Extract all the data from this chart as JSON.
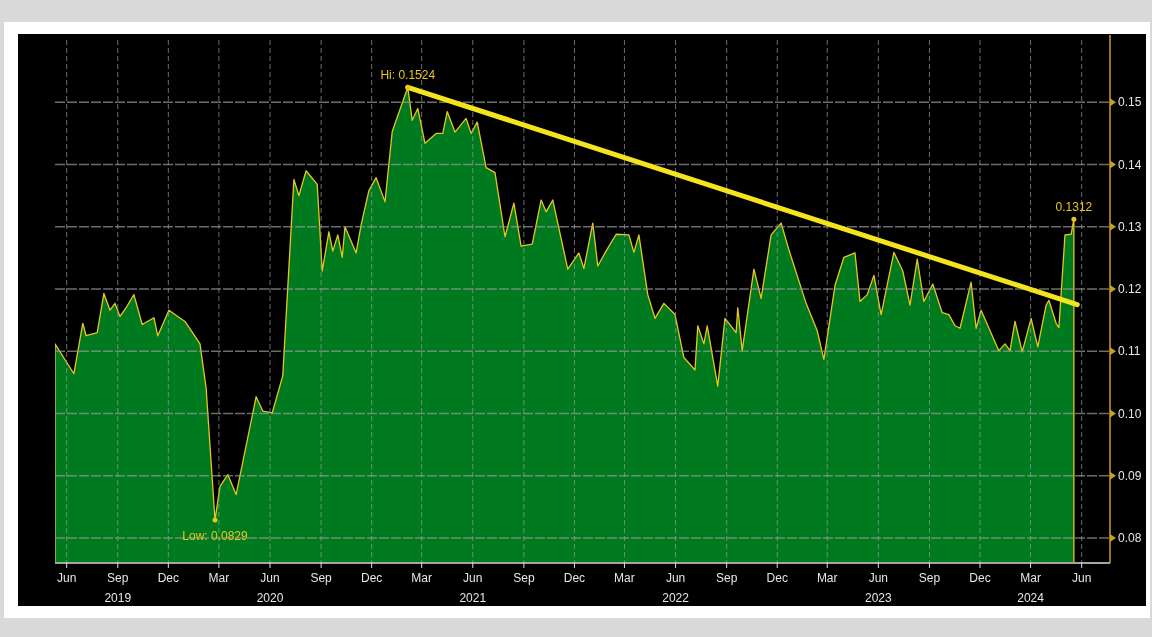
{
  "chart_data": {
    "type": "area",
    "xlim": [
      "2019-05-20",
      "2024-07-31"
    ],
    "ylim": [
      0.076,
      0.16
    ],
    "yticks": [
      0.08,
      0.09,
      {
        "value": 0.1,
        "label": "0.10"
      },
      0.11,
      0.12,
      0.13,
      0.14,
      0.15
    ],
    "xticks": [
      {
        "value": "2019-06-10",
        "label": "Jun"
      },
      {
        "value": "2019-09-10",
        "label": "Sep\n2019"
      },
      {
        "value": "2019-12-10",
        "label": "Dec"
      },
      {
        "value": "2020-03-10",
        "label": "Mar"
      },
      {
        "value": "2020-06-10",
        "label": "Jun\n2020"
      },
      {
        "value": "2020-09-10",
        "label": "Sep"
      },
      {
        "value": "2020-12-10",
        "label": "Dec"
      },
      {
        "value": "2021-03-10",
        "label": "Mar"
      },
      {
        "value": "2021-06-10",
        "label": "Jun\n2021"
      },
      {
        "value": "2021-09-10",
        "label": "Sep"
      },
      {
        "value": "2021-12-10",
        "label": "Dec"
      },
      {
        "value": "2022-03-10",
        "label": "Mar"
      },
      {
        "value": "2022-06-10",
        "label": "Jun\n2022"
      },
      {
        "value": "2022-09-10",
        "label": "Sep"
      },
      {
        "value": "2022-12-10",
        "label": "Dec"
      },
      {
        "value": "2023-03-10",
        "label": "Mar"
      },
      {
        "value": "2023-06-10",
        "label": "Jun\n2023"
      },
      {
        "value": "2023-09-10",
        "label": "Sep"
      },
      {
        "value": "2023-12-10",
        "label": "Dec"
      },
      {
        "value": "2024-03-10",
        "label": "Mar\n2024"
      },
      {
        "value": "2024-06-10",
        "label": "Jun"
      }
    ],
    "grid": true,
    "annotations": [
      {
        "text": "Hi: 0.1524",
        "x": "2021-02-13",
        "y": 0.1524
      },
      {
        "text": "Low: 0.0829",
        "x": "2020-03-03",
        "y": 0.0829
      },
      {
        "text": "0.1312",
        "x": "2024-05-27",
        "y": 0.1312
      }
    ],
    "series": [
      {
        "type": "area",
        "color": "#007a1e",
        "x": [
          "2019-05-20",
          "2019-06-23",
          "2019-07-09",
          "2019-07-15",
          "2019-08-04",
          "2019-08-16",
          "2019-08-27",
          "2019-09-05",
          "2019-09-14",
          "2019-09-25",
          "2019-10-09",
          "2019-10-24",
          "2019-11-14",
          "2019-11-21",
          "2019-12-11",
          "2020-01-09",
          "2020-02-05",
          "2020-02-16",
          "2020-03-03",
          "2020-03-12",
          "2020-03-26",
          "2020-04-10",
          "2020-05-16",
          "2020-05-28",
          "2020-06-14",
          "2020-07-03",
          "2020-07-23",
          "2020-08-01",
          "2020-08-14",
          "2020-09-03",
          "2020-09-12",
          "2020-09-24",
          "2020-10-01",
          "2020-10-10",
          "2020-10-18",
          "2020-10-23",
          "2020-11-12",
          "2020-11-21",
          "2020-12-05",
          "2020-12-18",
          "2021-01-03",
          "2021-01-16",
          "2021-02-13",
          "2021-02-21",
          "2021-03-03",
          "2021-03-16",
          "2021-04-05",
          "2021-04-17",
          "2021-04-25",
          "2021-05-09",
          "2021-05-29",
          "2021-06-07",
          "2021-06-18",
          "2021-07-04",
          "2021-07-20",
          "2021-08-07",
          "2021-08-23",
          "2021-09-05",
          "2021-09-25",
          "2021-10-11",
          "2021-10-20",
          "2021-11-01",
          "2021-11-28",
          "2021-12-18",
          "2021-12-27",
          "2022-01-12",
          "2022-01-21",
          "2022-02-03",
          "2022-02-23",
          "2022-03-18",
          "2022-03-27",
          "2022-04-05",
          "2022-04-21",
          "2022-05-04",
          "2022-05-20",
          "2022-06-09",
          "2022-06-25",
          "2022-07-15",
          "2022-07-20",
          "2022-07-31",
          "2022-08-06",
          "2022-08-25",
          "2022-09-07",
          "2022-09-27",
          "2022-09-30",
          "2022-10-08",
          "2022-10-29",
          "2022-11-11",
          "2022-11-29",
          "2022-12-17",
          "2022-12-31",
          "2023-01-31",
          "2023-02-20",
          "2023-03-04",
          "2023-03-24",
          "2023-04-09",
          "2023-04-29",
          "2023-05-08",
          "2023-05-21",
          "2023-06-02",
          "2023-06-15",
          "2023-07-08",
          "2023-07-24",
          "2023-08-06",
          "2023-08-19",
          "2023-08-31",
          "2023-09-16",
          "2023-10-03",
          "2023-10-15",
          "2023-10-26",
          "2023-11-04",
          "2023-11-24",
          "2023-12-03",
          "2023-12-12",
          "2024-01-01",
          "2024-01-13",
          "2024-01-24",
          "2024-02-02",
          "2024-02-11",
          "2024-02-24",
          "2024-03-11",
          "2024-03-23",
          "2024-04-07",
          "2024-04-12",
          "2024-04-25",
          "2024-04-30",
          "2024-05-11",
          "2024-05-22",
          "2024-05-27"
        ],
        "values": [
          0.1112,
          0.1064,
          0.1145,
          0.1125,
          0.113,
          0.1193,
          0.1166,
          0.1177,
          0.1156,
          0.117,
          0.1191,
          0.1143,
          0.1154,
          0.1125,
          0.1166,
          0.1148,
          0.1112,
          0.1041,
          0.0829,
          0.0883,
          0.0902,
          0.087,
          0.1027,
          0.1004,
          0.1001,
          0.1061,
          0.1376,
          0.135,
          0.139,
          0.1368,
          0.1229,
          0.1292,
          0.1261,
          0.1287,
          0.1251,
          0.13,
          0.1258,
          0.1303,
          0.1358,
          0.1379,
          0.134,
          0.1453,
          0.1524,
          0.1471,
          0.149,
          0.1434,
          0.145,
          0.145,
          0.1485,
          0.1452,
          0.1474,
          0.145,
          0.1468,
          0.1395,
          0.1387,
          0.1284,
          0.1338,
          0.1269,
          0.1272,
          0.1343,
          0.1324,
          0.1343,
          0.1232,
          0.1258,
          0.1233,
          0.1306,
          0.1237,
          0.1258,
          0.1288,
          0.1287,
          0.1259,
          0.1287,
          0.1191,
          0.1153,
          0.1177,
          0.1159,
          0.109,
          0.107,
          0.1141,
          0.1112,
          0.1141,
          0.1044,
          0.1153,
          0.113,
          0.117,
          0.1101,
          0.1232,
          0.1185,
          0.1287,
          0.1306,
          0.1263,
          0.1177,
          0.1133,
          0.1087,
          0.1206,
          0.1251,
          0.1258,
          0.118,
          0.1191,
          0.1222,
          0.1159,
          0.1259,
          0.1229,
          0.1174,
          0.1248,
          0.118,
          0.1208,
          0.1162,
          0.1159,
          0.1141,
          0.1137,
          0.1211,
          0.1137,
          0.1166,
          0.1125,
          0.1101,
          0.1112,
          0.1101,
          0.1148,
          0.1099,
          0.1153,
          0.1107,
          0.1174,
          0.1182,
          0.1145,
          0.1138,
          0.1287,
          0.1288,
          0.1312
        ]
      },
      {
        "type": "line",
        "color": "#f4e41c",
        "x": [
          "2021-02-13",
          "2024-06-02"
        ],
        "values": [
          0.1524,
          0.1175
        ]
      }
    ]
  }
}
